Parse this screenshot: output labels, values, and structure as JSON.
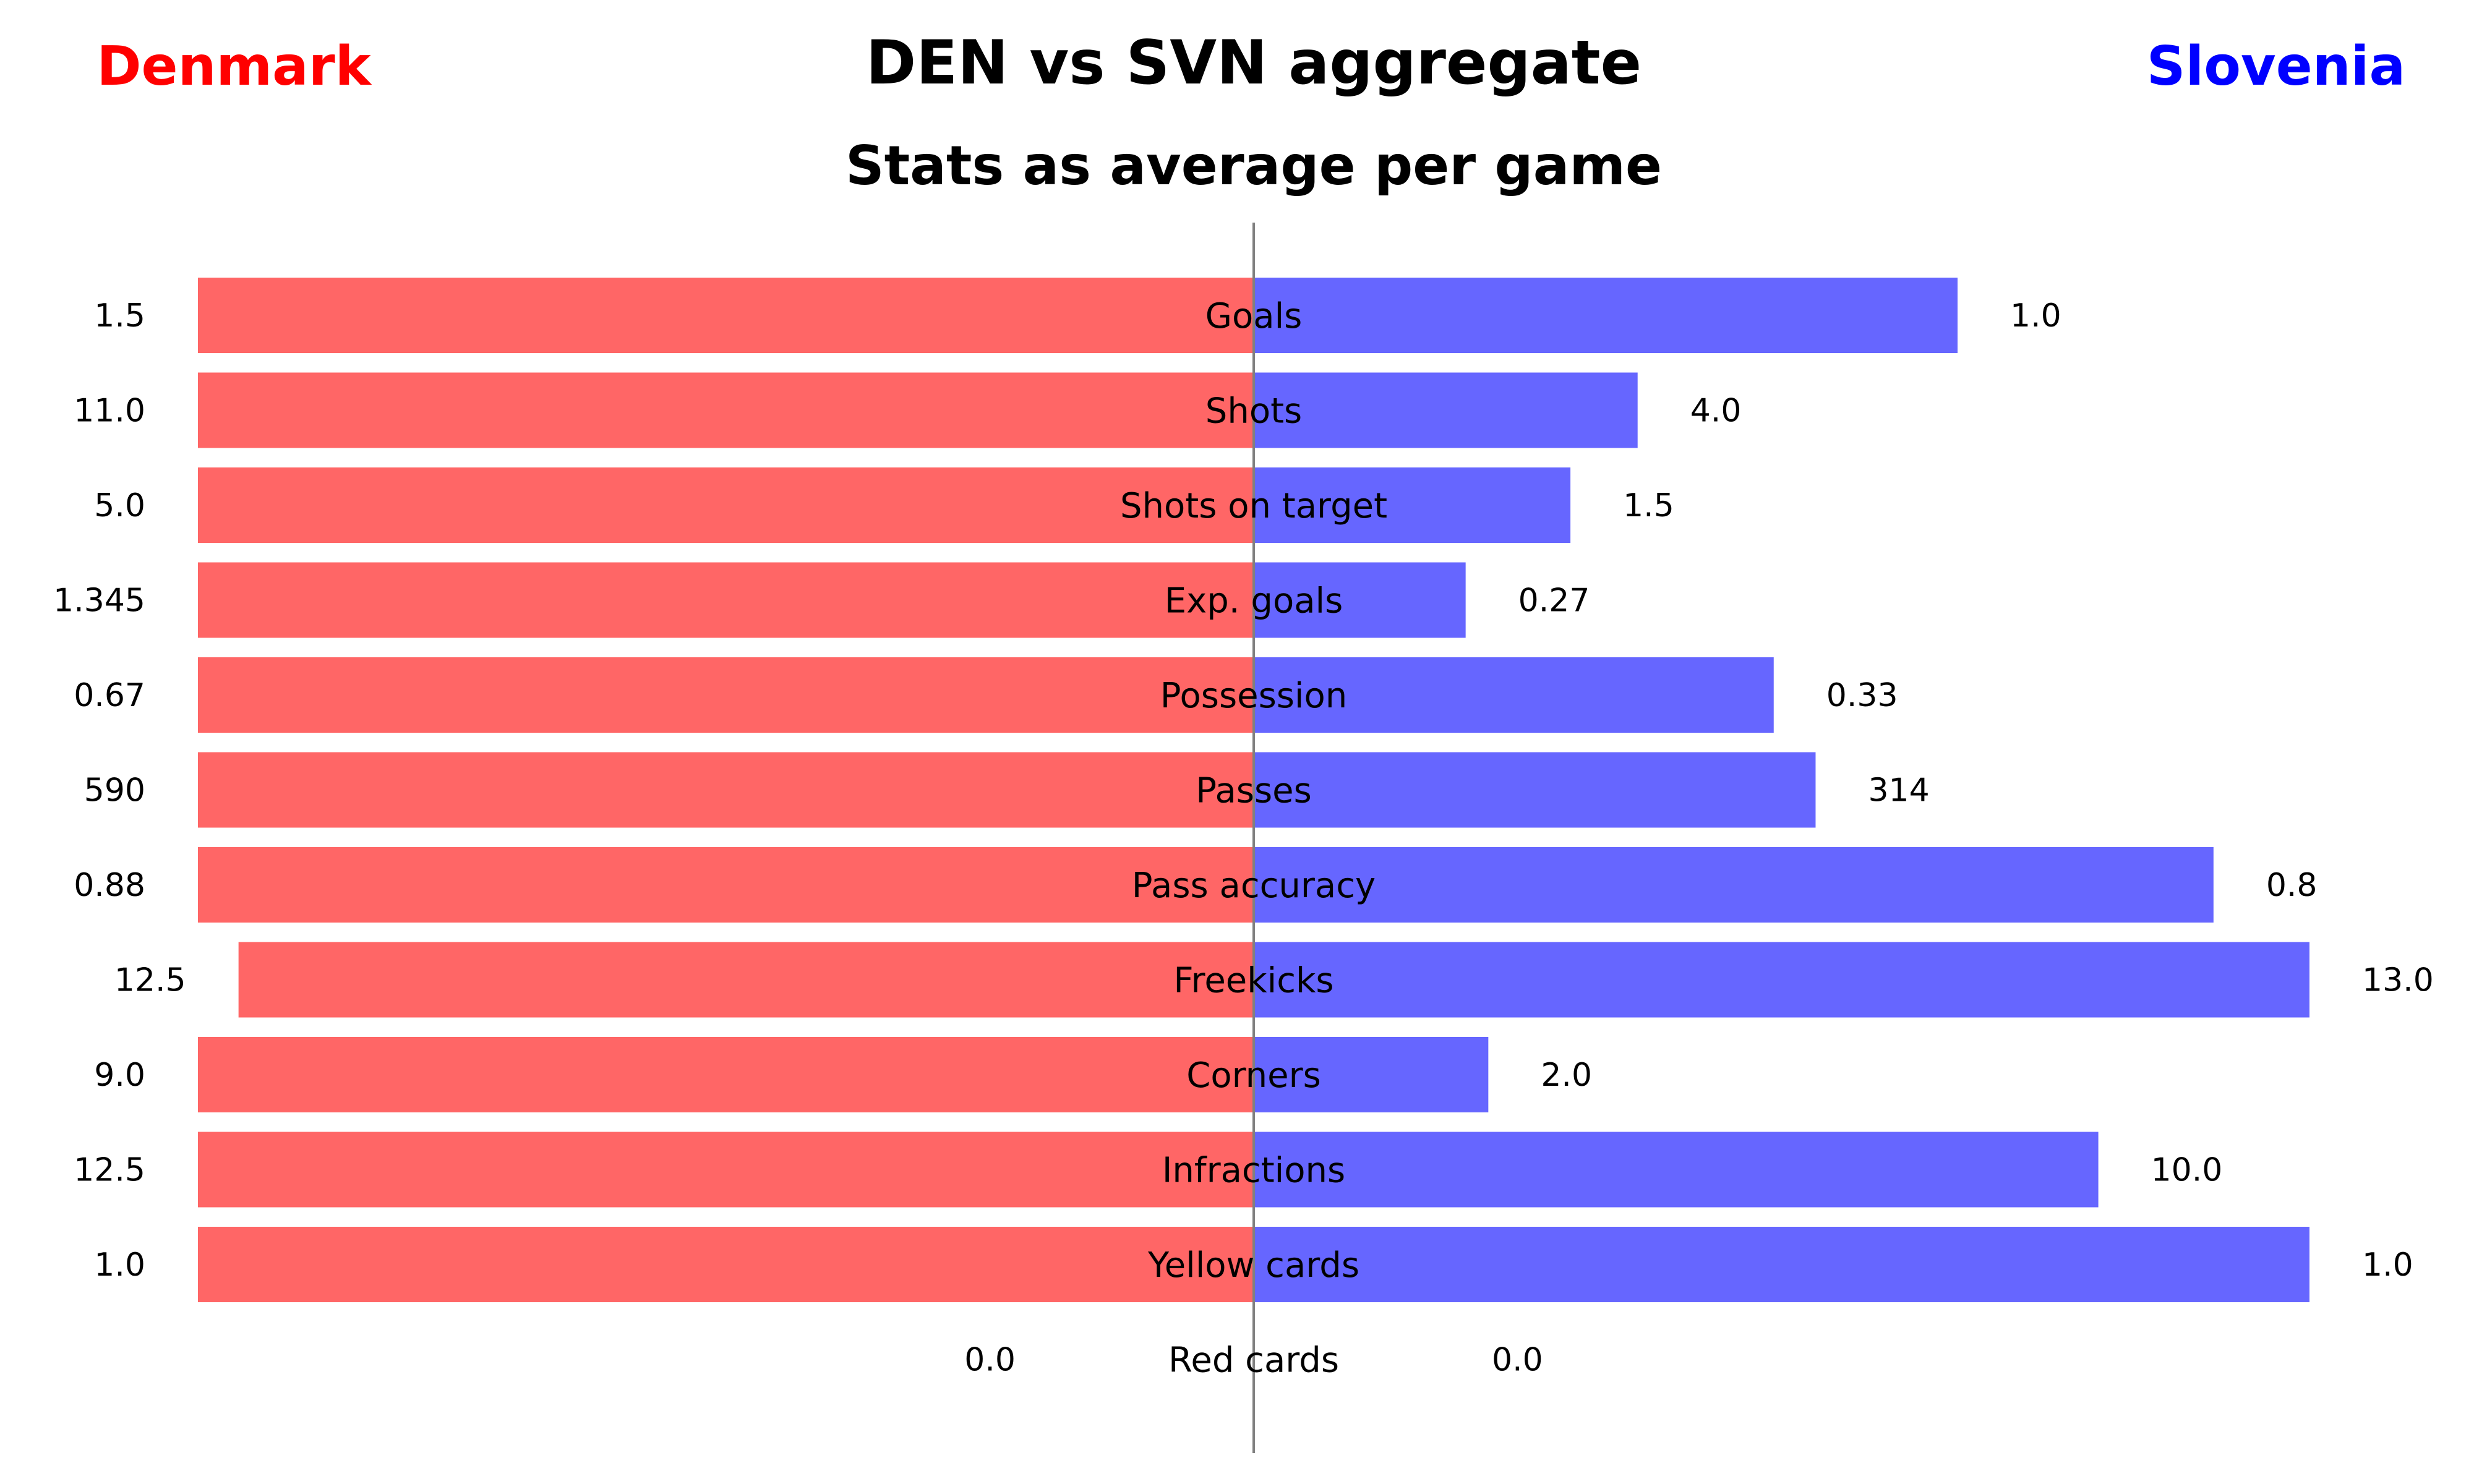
{
  "chart_data": {
    "type": "bar",
    "title": "DEN vs SVN aggregate",
    "subtitle": "Stats as average per game",
    "layout": "diverging horizontal bars, each stat normalized to the larger of the two teams",
    "teams": {
      "left": {
        "name": "Denmark",
        "color": "#ff0000",
        "bar_color": "#ff6666"
      },
      "right": {
        "name": "Slovenia",
        "color": "#0000ff",
        "bar_color": "#6666ff"
      }
    },
    "axis_color": "#808080",
    "categories": [
      "Goals",
      "Shots",
      "Shots on target",
      "Exp. goals",
      "Possession",
      "Passes",
      "Pass accuracy",
      "Freekicks",
      "Corners",
      "Infractions",
      "Yellow cards",
      "Red cards"
    ],
    "series": [
      {
        "name": "Denmark",
        "values": [
          1.5,
          11.0,
          5.0,
          1.345,
          0.67,
          590,
          0.88,
          12.5,
          9.0,
          12.5,
          1.0,
          0.0
        ],
        "labels": [
          "1.5",
          "11.0",
          "5.0",
          "1.345",
          "0.67",
          "590",
          "0.88",
          "12.5",
          "9.0",
          "12.5",
          "1.0",
          "0.0"
        ]
      },
      {
        "name": "Slovenia",
        "values": [
          1.0,
          4.0,
          1.5,
          0.27,
          0.33,
          314,
          0.8,
          13.0,
          2.0,
          10.0,
          1.0,
          0.0
        ],
        "labels": [
          "1.0",
          "4.0",
          "1.5",
          "0.27",
          "0.33",
          "314",
          "0.8",
          "13.0",
          "2.0",
          "10.0",
          "1.0",
          "0.0"
        ]
      }
    ],
    "grid": false,
    "legend": "none"
  }
}
